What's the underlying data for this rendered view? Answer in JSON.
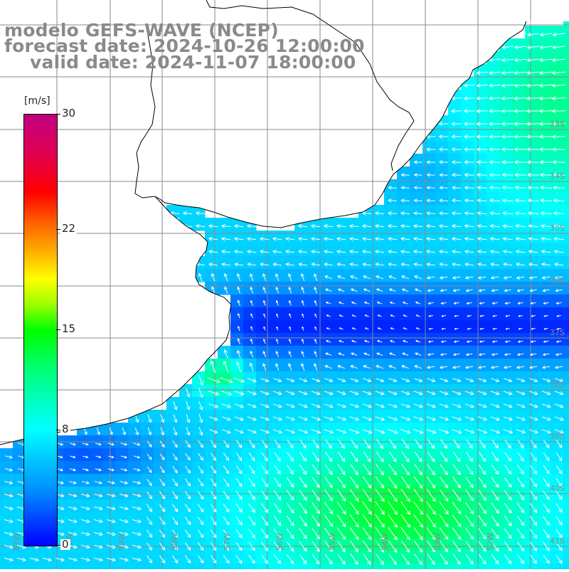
{
  "title": {
    "model_line": "modelo GEFS-WAVE (NCEP)",
    "forecast_line": "forecast date: 2024-10-26 12:00:00",
    "valid_line": "valid date: 2024-11-07 18:00:00"
  },
  "colorbar": {
    "unit": "[m/s]",
    "min": 0,
    "max": 30,
    "ticks": [
      "30",
      "22",
      "15",
      "8",
      "0"
    ],
    "tick_values": [
      30,
      22,
      15,
      8,
      0
    ],
    "colors": [
      "#0000ff",
      "#0090ff",
      "#00ffff",
      "#00ff80",
      "#00ff00",
      "#ffff00",
      "#ff6000",
      "#ff0000",
      "#c00080"
    ]
  },
  "map": {
    "lat_labels": [
      "33S",
      "34S",
      "35S",
      "36S",
      "37S",
      "38S",
      "39S",
      "40S",
      "41S"
    ],
    "lon_labels": [
      "61W",
      "60W",
      "59W",
      "58W",
      "57W",
      "56W",
      "55W",
      "54W",
      "53W",
      "52W"
    ],
    "land_color": "#ffffff",
    "grid_color": "#8a8a8a",
    "coast_color": "#000000",
    "vector_color": "#ffffff"
  }
}
